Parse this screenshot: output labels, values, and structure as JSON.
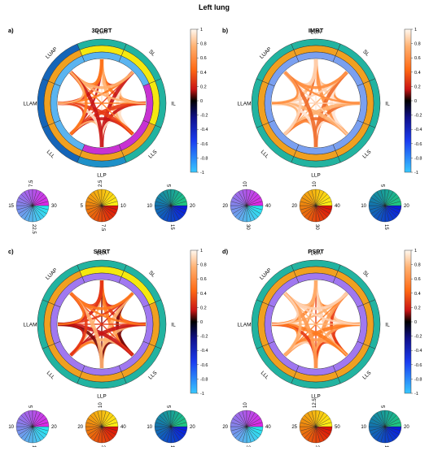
{
  "title": "Left lung",
  "panels": [
    {
      "letter": "a)",
      "name": "3DCRT",
      "outer_colors": [
        "#22b3a0",
        "#22b3a0",
        "#22b3a0",
        "#22b3a0",
        "#1e90c8",
        "#1565b8",
        "#1565b8",
        "#1565b8"
      ],
      "mid_colors": [
        "#f5e80f",
        "#f5e80f",
        "#f5e80f",
        "#f0a020",
        "#f0a020",
        "#f0a020",
        "#f0a020",
        "#f0a020"
      ],
      "inner_colors": [
        "#5ab4f0",
        "#5ab4f0",
        "#c832d2",
        "#c832d2",
        "#c832d2",
        "#5ab4f0",
        "#5ab4f0",
        "#5ab4f0"
      ],
      "link_colors": [
        "#e83a14",
        "#ff7a1e",
        "#ffb070",
        "#ffe0c8",
        "#c81414"
      ],
      "pies": [
        {
          "ticks": [
            "7.5",
            "15",
            "22.5",
            "30"
          ],
          "colormap": "cool"
        },
        {
          "ticks": [
            "2.5",
            "5",
            "7.5",
            "10"
          ],
          "colormap": "autumn"
        },
        {
          "ticks": [
            "5",
            "10",
            "15",
            "20"
          ],
          "colormap": "winter"
        }
      ]
    },
    {
      "letter": "b)",
      "name": "IMRT",
      "outer_colors": [
        "#22b3a0",
        "#22b3a0",
        "#22b3a0",
        "#22b3a0",
        "#22b3a0",
        "#22b3a0",
        "#22b3a0",
        "#22b3a0"
      ],
      "mid_colors": [
        "#f0a020",
        "#f0a020",
        "#f0a020",
        "#f0a020",
        "#f0a020",
        "#f0a020",
        "#f0a020",
        "#f0a020"
      ],
      "inner_colors": [
        "#7aa0f0",
        "#7aa0f0",
        "#7aa0f0",
        "#7aa0f0",
        "#7aa0f0",
        "#7aa0f0",
        "#7aa0f0",
        "#7aa0f0"
      ],
      "link_colors": [
        "#ffb070",
        "#ffd0b0",
        "#ff8c3c",
        "#ffe6d6",
        "#f06a28"
      ],
      "pies": [
        {
          "ticks": [
            "10",
            "20",
            "30",
            "40"
          ],
          "colormap": "cool"
        },
        {
          "ticks": [
            "10",
            "20",
            "30",
            "40"
          ],
          "colormap": "autumn"
        },
        {
          "ticks": [
            "5",
            "10",
            "15",
            "20"
          ],
          "colormap": "winter"
        }
      ]
    },
    {
      "letter": "c)",
      "name": "SBRT",
      "outer_colors": [
        "#22b3a0",
        "#22b3a0",
        "#22b3a0",
        "#22b3a0",
        "#22b3a0",
        "#22b3a0",
        "#22b3a0",
        "#22b3a0"
      ],
      "mid_colors": [
        "#f5e80f",
        "#f5e80f",
        "#f0a020",
        "#f0a020",
        "#f0a020",
        "#f0a020",
        "#f0a020",
        "#f0a020"
      ],
      "inner_colors": [
        "#a078f0",
        "#a078f0",
        "#a078f0",
        "#a078f0",
        "#a078f0",
        "#a078f0",
        "#a078f0",
        "#a078f0"
      ],
      "link_colors": [
        "#c81414",
        "#e83a14",
        "#ff7a1e",
        "#7a0a0a",
        "#ffb070"
      ],
      "pies": [
        {
          "ticks": [
            "5",
            "10",
            "15",
            "20"
          ],
          "colormap": "cool"
        },
        {
          "ticks": [
            "10",
            "20",
            "30",
            "40"
          ],
          "colormap": "autumn"
        },
        {
          "ticks": [
            "5",
            "10",
            "15",
            "20"
          ],
          "colormap": "winter"
        }
      ]
    },
    {
      "letter": "d)",
      "name": "PSPT",
      "outer_colors": [
        "#22b3a0",
        "#22b3a0",
        "#22b3a0",
        "#22b3a0",
        "#22b3a0",
        "#22b3a0",
        "#22b3a0",
        "#22b3a0"
      ],
      "mid_colors": [
        "#f0a020",
        "#f0a020",
        "#f0a020",
        "#f0a020",
        "#f0a020",
        "#f0a020",
        "#f0a020",
        "#f0a020"
      ],
      "inner_colors": [
        "#a078f0",
        "#a078f0",
        "#a078f0",
        "#a078f0",
        "#a078f0",
        "#a078f0",
        "#a078f0",
        "#a078f0"
      ],
      "link_colors": [
        "#ff7a1e",
        "#ffb070",
        "#ffd0b0",
        "#e83a14",
        "#ff9a50"
      ],
      "pies": [
        {
          "ticks": [
            "10",
            "20",
            "30",
            "40"
          ],
          "colormap": "cool"
        },
        {
          "ticks": [
            "12.5",
            "25",
            "37.5",
            "50"
          ],
          "colormap": "autumn"
        },
        {
          "ticks": [
            "5",
            "10",
            "15",
            "20"
          ],
          "colormap": "winter"
        }
      ]
    }
  ],
  "node_labels": [
    "LUA",
    "SL",
    "IL",
    "LLS",
    "LLP",
    "LLL",
    "LLAM",
    "LUAP"
  ],
  "colorbar_ticks": [
    "1",
    "0.8",
    "0.6",
    "0.4",
    "0.2",
    "0",
    "-0.2",
    "-0.4",
    "-0.6",
    "-0.8",
    "-1"
  ],
  "chart_data": {
    "type": "chord",
    "title": "Left lung",
    "panels": [
      "3DCRT",
      "IMRT",
      "SBRT",
      "PSPT"
    ],
    "nodes": [
      "LUA",
      "SL",
      "IL",
      "LLS",
      "LLP",
      "LLL",
      "LLAM",
      "LUAP"
    ],
    "colorbar_range": [
      -1,
      1
    ]
  }
}
